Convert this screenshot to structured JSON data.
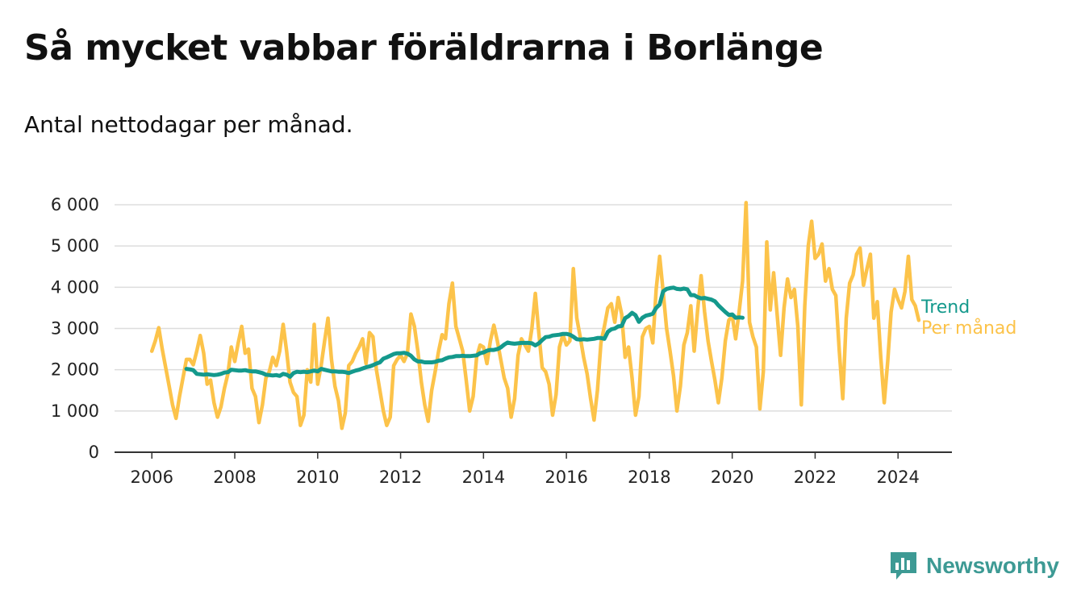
{
  "title": "Så mycket vabbar föräldrarna i Borlänge",
  "subtitle": "Antal nettodagar per månad.",
  "brand": {
    "name": "Newsworthy",
    "icon": "bar-chart-speech-bubble-icon",
    "color": "#3d9a94"
  },
  "colors": {
    "trend": "#14998c",
    "monthly": "#fcc34a",
    "grid": "#dddddd",
    "axis": "#333333",
    "text": "#222222"
  },
  "chart_data": {
    "type": "line",
    "title": "Så mycket vabbar föräldrarna i Borlänge",
    "subtitle": "Antal nettodagar per månad.",
    "x_ticks": [
      2006,
      2008,
      2010,
      2012,
      2014,
      2016,
      2018,
      2020,
      2022,
      2024
    ],
    "y_ticks": [
      "0",
      "1 000",
      "2 000",
      "3 000",
      "4 000",
      "5 000",
      "6 000"
    ],
    "ylim": [
      0,
      6000
    ],
    "xlim": [
      2005.1,
      2025.3
    ],
    "grid": "horizontal",
    "legend_position": "right-end",
    "series": [
      {
        "name": "Trend",
        "x_start": "2006-11",
        "values": [
          2020,
          2010,
          1990,
          1900,
          1890,
          1880,
          1890,
          1880,
          1870,
          1880,
          1900,
          1930,
          1940,
          2000,
          1990,
          1980,
          1980,
          1990,
          1970,
          1960,
          1960,
          1940,
          1920,
          1880,
          1870,
          1860,
          1870,
          1850,
          1900,
          1880,
          1830,
          1920,
          1950,
          1940,
          1950,
          1940,
          1960,
          1980,
          1960,
          2020,
          2000,
          1980,
          1960,
          1960,
          1950,
          1950,
          1940,
          1920,
          1950,
          1980,
          2000,
          2030,
          2060,
          2080,
          2110,
          2150,
          2180,
          2270,
          2300,
          2340,
          2380,
          2400,
          2400,
          2410,
          2390,
          2340,
          2250,
          2200,
          2200,
          2180,
          2180,
          2180,
          2190,
          2220,
          2230,
          2270,
          2300,
          2310,
          2330,
          2330,
          2340,
          2330,
          2330,
          2340,
          2350,
          2400,
          2420,
          2460,
          2480,
          2480,
          2500,
          2540,
          2610,
          2660,
          2640,
          2630,
          2640,
          2650,
          2650,
          2650,
          2640,
          2590,
          2640,
          2720,
          2790,
          2800,
          2830,
          2840,
          2850,
          2870,
          2870,
          2850,
          2800,
          2740,
          2730,
          2740,
          2730,
          2740,
          2750,
          2770,
          2770,
          2750,
          2920,
          2980,
          3000,
          3050,
          3060,
          3250,
          3300,
          3380,
          3320,
          3160,
          3260,
          3310,
          3330,
          3360,
          3500,
          3580,
          3900,
          3960,
          3980,
          3990,
          3960,
          3950,
          3970,
          3950,
          3810,
          3810,
          3760,
          3730,
          3740,
          3720,
          3700,
          3660,
          3560,
          3480,
          3400,
          3330,
          3340,
          3260,
          3270,
          3260
        ]
      },
      {
        "name": "Per månad",
        "x_start": "2006-01",
        "values": [
          2450,
          2700,
          3020,
          2500,
          2050,
          1600,
          1150,
          820,
          1350,
          1800,
          2250,
          2250,
          2120,
          2450,
          2830,
          2400,
          1650,
          1750,
          1200,
          850,
          1100,
          1550,
          1900,
          2550,
          2200,
          2650,
          3050,
          2400,
          2500,
          1550,
          1350,
          720,
          1150,
          1800,
          1950,
          2300,
          2100,
          2450,
          3100,
          2450,
          1700,
          1450,
          1350,
          650,
          900,
          2000,
          1700,
          3100,
          1650,
          2100,
          2700,
          3250,
          2250,
          1600,
          1250,
          580,
          950,
          2100,
          2200,
          2400,
          2550,
          2750,
          2150,
          2900,
          2800,
          2000,
          1500,
          1000,
          650,
          850,
          2100,
          2250,
          2350,
          2200,
          2400,
          3350,
          3050,
          2450,
          1700,
          1150,
          750,
          1500,
          1950,
          2450,
          2850,
          2750,
          3600,
          4100,
          3050,
          2750,
          2450,
          1750,
          1000,
          1350,
          2300,
          2600,
          2550,
          2150,
          2700,
          3080,
          2700,
          2250,
          1800,
          1550,
          850,
          1300,
          2350,
          2750,
          2600,
          2450,
          3000,
          3850,
          2900,
          2050,
          1950,
          1650,
          900,
          1400,
          2550,
          2850,
          2600,
          2700,
          4450,
          3250,
          2800,
          2300,
          1900,
          1300,
          780,
          1500,
          2650,
          3050,
          3500,
          3600,
          3150,
          3750,
          3350,
          2300,
          2550,
          1800,
          900,
          1350,
          2800,
          3000,
          3050,
          2650,
          3950,
          4750,
          3900,
          3000,
          2450,
          1850,
          1000,
          1600,
          2600,
          2900,
          3550,
          2450,
          3450,
          4280,
          3400,
          2700,
          2200,
          1750,
          1200,
          1800,
          2700,
          3200,
          3300,
          2750,
          3400,
          4150,
          6050,
          3150,
          2800,
          2550,
          1050,
          1950,
          5100,
          3450,
          4350,
          3350,
          2350,
          3500,
          4200,
          3750,
          3950,
          3050,
          1150,
          3550,
          5000,
          5600,
          4700,
          4800,
          5050,
          4150,
          4450,
          3950,
          3800,
          2450,
          1300,
          3250,
          4100,
          4300,
          4800,
          4950,
          4050,
          4450,
          4800,
          3250,
          3650,
          2300,
          1200,
          2200,
          3400,
          3950,
          3700,
          3500,
          3900,
          4750,
          3700,
          3550,
          3200
        ]
      }
    ]
  }
}
